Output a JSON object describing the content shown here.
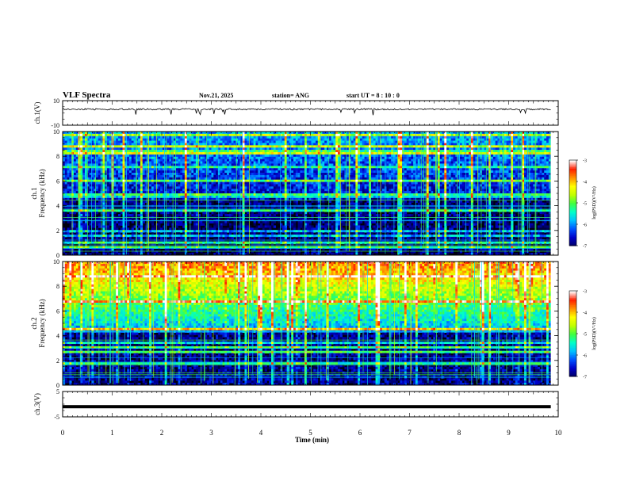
{
  "header": {
    "title": "VLF Spectra",
    "date": "Nov.21, 2025",
    "station": "station= ANG",
    "start": "start  UT =   8  : 10 : 0"
  },
  "chart_data": [
    {
      "type": "line",
      "panel": "ch1_waveform",
      "ylabel": "ch.1(V)",
      "ylim": [
        -10,
        10
      ],
      "ytick_labels": [
        "10",
        "-10"
      ],
      "xlim": [
        0,
        10
      ],
      "trace_level": 3,
      "trace_color": "#000000"
    },
    {
      "type": "heatmap",
      "panel": "ch1_spectrogram",
      "ylabel_lines": [
        "ch.1",
        "Frequency (kHz)"
      ],
      "ylim": [
        0,
        10
      ],
      "ytick_labels": [
        "0",
        "2",
        "4",
        "6",
        "8",
        "10"
      ],
      "xlim": [
        0,
        10
      ],
      "data_extent_min": 9.85,
      "colorbar": {
        "label": "log(PSD)(V²/Hz)",
        "range": [
          -7,
          -3
        ],
        "tick_labels": [
          "-3",
          "-4",
          "-5",
          "-6",
          "-7"
        ]
      },
      "colormap": [
        "#000010",
        "#000060",
        "#0000c8",
        "#0050ff",
        "#00c0ff",
        "#00ffc8",
        "#40ff40",
        "#c0ff00",
        "#ffff00",
        "#ff9000",
        "#ff2000",
        "#ffffff"
      ]
    },
    {
      "type": "heatmap",
      "panel": "ch2_spectrogram",
      "ylabel_lines": [
        "ch.2",
        "Frequency (kHz)"
      ],
      "ylim": [
        0,
        10
      ],
      "ytick_labels": [
        "0",
        "2",
        "4",
        "6",
        "8",
        "10"
      ],
      "xlim": [
        0,
        10
      ],
      "data_extent_min": 9.85,
      "colorbar": {
        "label": "log(PSD)(V²/Hz)",
        "range": [
          -7,
          -3
        ],
        "tick_labels": [
          "-3",
          "-4",
          "-5",
          "-6",
          "-7"
        ]
      },
      "colormap": [
        "#000010",
        "#000060",
        "#0000c8",
        "#0050ff",
        "#00c0ff",
        "#00ffc8",
        "#40ff40",
        "#c0ff00",
        "#ffff00",
        "#ff9000",
        "#ff2000",
        "#ffffff"
      ]
    },
    {
      "type": "line",
      "panel": "ch3_waveform",
      "ylabel": "ch.3(V)",
      "ylim": [
        -5,
        5
      ],
      "ytick_labels": [
        "5",
        "-5"
      ],
      "xlim": [
        0,
        10
      ],
      "trace_level": -1,
      "trace_color": "#000000"
    }
  ],
  "x_axis": {
    "label": "Time  (min)",
    "range": [
      0,
      10
    ],
    "tick_labels": [
      "0",
      "1",
      "2",
      "3",
      "4",
      "5",
      "6",
      "7",
      "8",
      "9",
      "10"
    ]
  }
}
